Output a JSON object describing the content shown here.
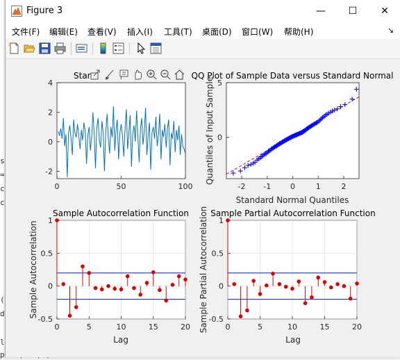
{
  "background_console": {
    "lines": [
      "st",
      "==",
      "ce",
      "ce",
      "(M",
      "dy",
      "lo",
      "plot(res) ;"
    ]
  },
  "window": {
    "title": "Figure 3",
    "icon": "matlab-figure-icon",
    "controls": {
      "minimize": "—",
      "maximize": "☐",
      "close": "✕"
    }
  },
  "menu": {
    "items": [
      "文件(F)",
      "编辑(E)",
      "查看(V)",
      "插入(I)",
      "工具(T)",
      "桌面(D)",
      "窗口(W)",
      "帮助(H)"
    ],
    "overflow": "↘"
  },
  "toolbar": {
    "buttons": [
      "new-figure-icon",
      "open-icon",
      "save-icon",
      "print-icon",
      "link-icon",
      "colorbar-icon",
      "legend-icon",
      "pointer-icon",
      "property-editor-icon"
    ]
  },
  "axes_toolbar": {
    "buttons": [
      "export-icon",
      "brush-icon",
      "datatip-icon",
      "pan-icon",
      "zoom-in-icon",
      "zoom-out-icon",
      "home-icon"
    ]
  },
  "chart_data": [
    {
      "type": "line",
      "title": "Star",
      "xlabel": "",
      "ylabel": "",
      "xlim": [
        0,
        100
      ],
      "ylim": [
        -2.5,
        4
      ],
      "xticks": [
        0,
        50,
        100
      ],
      "yticks": [
        -2,
        0,
        2,
        4
      ],
      "color": "#0072bd",
      "x_start": 1,
      "values": [
        0.7,
        0.4,
        0.9,
        0.2,
        1.6,
        -0.3,
        0.5,
        -2.4,
        0.6,
        1.1,
        0.2,
        -0.9,
        1.5,
        0.6,
        0.3,
        1.2,
        0.4,
        -0.5,
        0.8,
        0.1,
        1.3,
        0.7,
        -1.5,
        0.4,
        1.0,
        -0.6,
        0.3,
        2.0,
        0.5,
        -1.8,
        0.9,
        1.6,
        0.1,
        -0.4,
        1.4,
        0.6,
        -2.0,
        0.7,
        1.9,
        0.2,
        -0.8,
        1.0,
        0.3,
        2.4,
        -0.6,
        0.8,
        1.5,
        -1.2,
        0.6,
        1.2,
        0.4,
        -1.0,
        0.9,
        2.2,
        -0.5,
        0.6,
        1.8,
        -1.7,
        0.5,
        1.1,
        0.0,
        2.1,
        0.3,
        -1.4,
        0.9,
        1.6,
        -0.2,
        0.7,
        2.3,
        -0.9,
        0.4,
        1.3,
        -1.9,
        0.6,
        1.0,
        0.2,
        1.7,
        -0.3,
        0.5,
        1.9,
        -1.2,
        0.8,
        0.3,
        1.2,
        -0.4,
        0.9,
        1.5,
        -1.6,
        0.6,
        0.2,
        1.4,
        -0.7,
        0.8,
        0.1,
        1.1,
        -0.9,
        0.5,
        -0.3,
        -0.5,
        -0.8
      ]
    },
    {
      "type": "scatter",
      "title": "QQ Plot of Sample Data versus Standard Normal",
      "xlabel": "Standard Normal Quantiles",
      "ylabel": "Quantiles of Input Sample",
      "xlim": [
        -2.6,
        2.6
      ],
      "ylim": [
        -3.8,
        5
      ],
      "xticks": [
        -2,
        -1,
        0,
        1,
        2
      ],
      "yticks": [
        -5,
        0,
        5
      ],
      "yticklabels_visible": [
        0,
        5
      ],
      "marker": "+",
      "marker_color": "#0000ff",
      "reference_line": {
        "x": [
          -2.6,
          2.6
        ],
        "y": [
          -3.4,
          3.7
        ],
        "color": "#dd0000",
        "style": "dashed"
      },
      "points": {
        "x": [
          -2.33,
          -2.05,
          -1.88,
          -1.75,
          -1.64,
          -1.55,
          -1.48,
          -1.4,
          -1.34,
          -1.28,
          -1.23,
          -1.17,
          -1.13,
          -1.08,
          -1.04,
          -0.99,
          -0.95,
          -0.92,
          -0.88,
          -0.84,
          -0.81,
          -0.77,
          -0.74,
          -0.71,
          -0.67,
          -0.64,
          -0.61,
          -0.58,
          -0.55,
          -0.52,
          -0.5,
          -0.47,
          -0.44,
          -0.41,
          -0.39,
          -0.36,
          -0.33,
          -0.31,
          -0.28,
          -0.25,
          -0.23,
          -0.2,
          -0.18,
          -0.15,
          -0.13,
          -0.1,
          -0.08,
          -0.05,
          -0.03,
          0.0,
          0.03,
          0.05,
          0.08,
          0.1,
          0.13,
          0.15,
          0.18,
          0.2,
          0.23,
          0.25,
          0.28,
          0.31,
          0.33,
          0.36,
          0.39,
          0.41,
          0.44,
          0.47,
          0.5,
          0.52,
          0.55,
          0.58,
          0.61,
          0.64,
          0.67,
          0.71,
          0.74,
          0.77,
          0.81,
          0.84,
          0.88,
          0.92,
          0.95,
          0.99,
          1.04,
          1.08,
          1.13,
          1.17,
          1.23,
          1.28,
          1.34,
          1.4,
          1.48,
          1.55,
          1.64,
          1.75,
          1.88,
          2.05,
          2.33,
          2.5
        ],
        "y": [
          -3.3,
          -3.1,
          -2.8,
          -2.6,
          -2.5,
          -2.4,
          -2.3,
          -2.1,
          -2.0,
          -1.9,
          -1.8,
          -1.7,
          -1.6,
          -1.55,
          -1.5,
          -1.4,
          -1.3,
          -1.25,
          -1.2,
          -1.1,
          -1.05,
          -1.0,
          -0.95,
          -0.9,
          -0.85,
          -0.8,
          -0.75,
          -0.7,
          -0.65,
          -0.6,
          -0.58,
          -0.55,
          -0.5,
          -0.45,
          -0.42,
          -0.4,
          -0.35,
          -0.3,
          -0.28,
          -0.25,
          -0.2,
          -0.18,
          -0.15,
          -0.1,
          -0.08,
          -0.05,
          -0.02,
          0.0,
          0.05,
          0.08,
          0.1,
          0.12,
          0.15,
          0.18,
          0.2,
          0.22,
          0.25,
          0.28,
          0.3,
          0.33,
          0.35,
          0.38,
          0.4,
          0.43,
          0.46,
          0.5,
          0.55,
          0.6,
          0.65,
          0.7,
          0.75,
          0.8,
          0.85,
          0.9,
          0.95,
          1.0,
          1.05,
          1.1,
          1.15,
          1.2,
          1.25,
          1.3,
          1.35,
          1.4,
          1.5,
          1.6,
          1.7,
          1.8,
          1.9,
          2.0,
          2.1,
          2.2,
          2.3,
          2.4,
          2.5,
          2.6,
          2.8,
          3.0,
          3.5,
          4.4
        ]
      }
    },
    {
      "type": "stem",
      "title": "Sample Autocorrelation Function",
      "xlabel": "Lag",
      "ylabel": "Sample Autocorrelation",
      "xlim": [
        0,
        20
      ],
      "ylim": [
        -0.5,
        1
      ],
      "xticks": [
        0,
        5,
        10,
        15,
        20
      ],
      "yticks": [
        -0.5,
        0,
        0.5,
        1
      ],
      "grid": true,
      "stem_color": "#dd0000",
      "bound_color": "#3344cc",
      "bounds": [
        0.2,
        -0.2
      ],
      "lags": [
        0,
        1,
        2,
        3,
        4,
        5,
        6,
        7,
        8,
        9,
        10,
        11,
        12,
        13,
        14,
        15,
        16,
        17,
        18,
        19,
        20
      ],
      "values": [
        1.0,
        0.03,
        -0.45,
        -0.32,
        0.3,
        0.2,
        -0.03,
        -0.05,
        0.0,
        -0.04,
        -0.05,
        0.15,
        -0.03,
        -0.13,
        0.05,
        0.21,
        -0.06,
        -0.22,
        0.02,
        0.15,
        0.1
      ]
    },
    {
      "type": "stem",
      "title": "Sample Partial Autocorrelation Function",
      "xlabel": "Lag",
      "ylabel": "Sample Partial Autocorrelation",
      "xlim": [
        0,
        20
      ],
      "ylim": [
        -0.5,
        1
      ],
      "xticks": [
        0,
        5,
        10,
        15,
        20
      ],
      "yticks": [
        -0.5,
        0,
        0.5,
        1
      ],
      "grid": true,
      "stem_color": "#dd0000",
      "bound_color": "#3344cc",
      "bounds": [
        0.2,
        -0.2
      ],
      "lags": [
        0,
        1,
        2,
        3,
        4,
        5,
        6,
        7,
        8,
        9,
        10,
        11,
        12,
        13,
        14,
        15,
        16,
        17,
        18,
        19,
        20
      ],
      "values": [
        1.0,
        0.03,
        -0.46,
        -0.37,
        0.08,
        -0.12,
        0.01,
        0.19,
        0.03,
        -0.01,
        -0.04,
        0.07,
        -0.26,
        -0.17,
        0.13,
        0.06,
        -0.02,
        0.03,
        0.0,
        -0.19,
        0.04
      ]
    }
  ]
}
